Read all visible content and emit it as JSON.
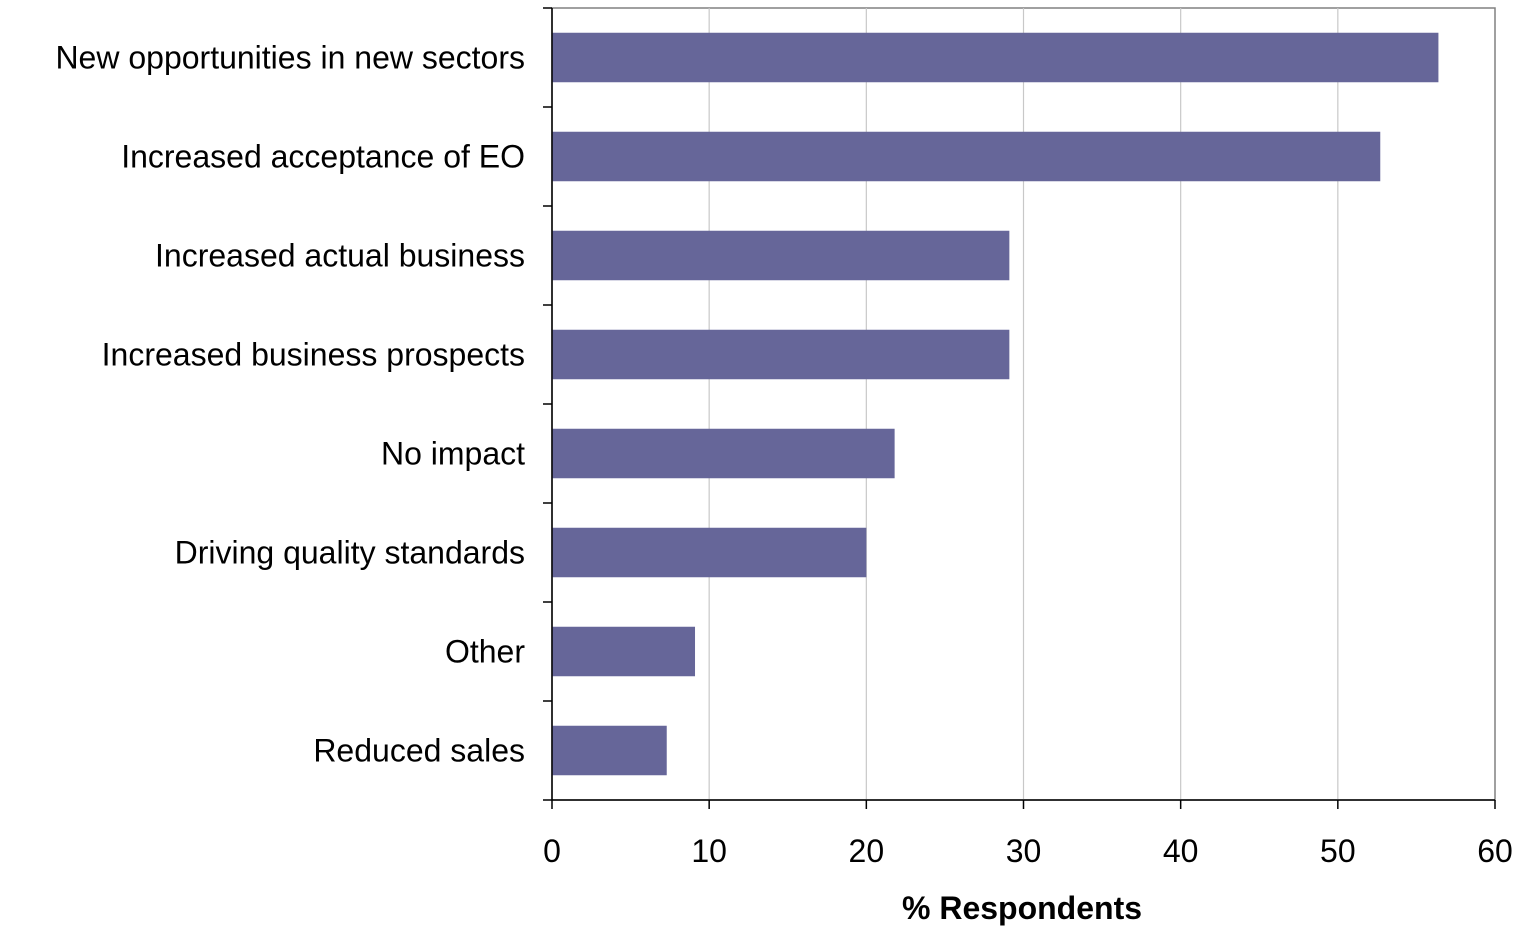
{
  "chart_data": {
    "type": "bar",
    "orientation": "horizontal",
    "categories": [
      "New opportunities in new sectors",
      "Increased acceptance of EO",
      "Increased actual business",
      "Increased business prospects",
      "No impact",
      "Driving quality standards",
      "Other",
      "Reduced sales"
    ],
    "values": [
      56.4,
      52.7,
      29.1,
      29.1,
      21.8,
      20.0,
      9.1,
      7.3
    ],
    "title": "",
    "xlabel": "% Respondents",
    "ylabel": "",
    "xlim": [
      0,
      60
    ],
    "xticks": [
      "0",
      "10",
      "20",
      "30",
      "40",
      "50",
      "60"
    ],
    "grid": "vertical",
    "legend": "none"
  },
  "colors": {
    "bar": "#666699",
    "grid": "#c8c8c8",
    "axis": "#000000",
    "frame": "#808080"
  }
}
